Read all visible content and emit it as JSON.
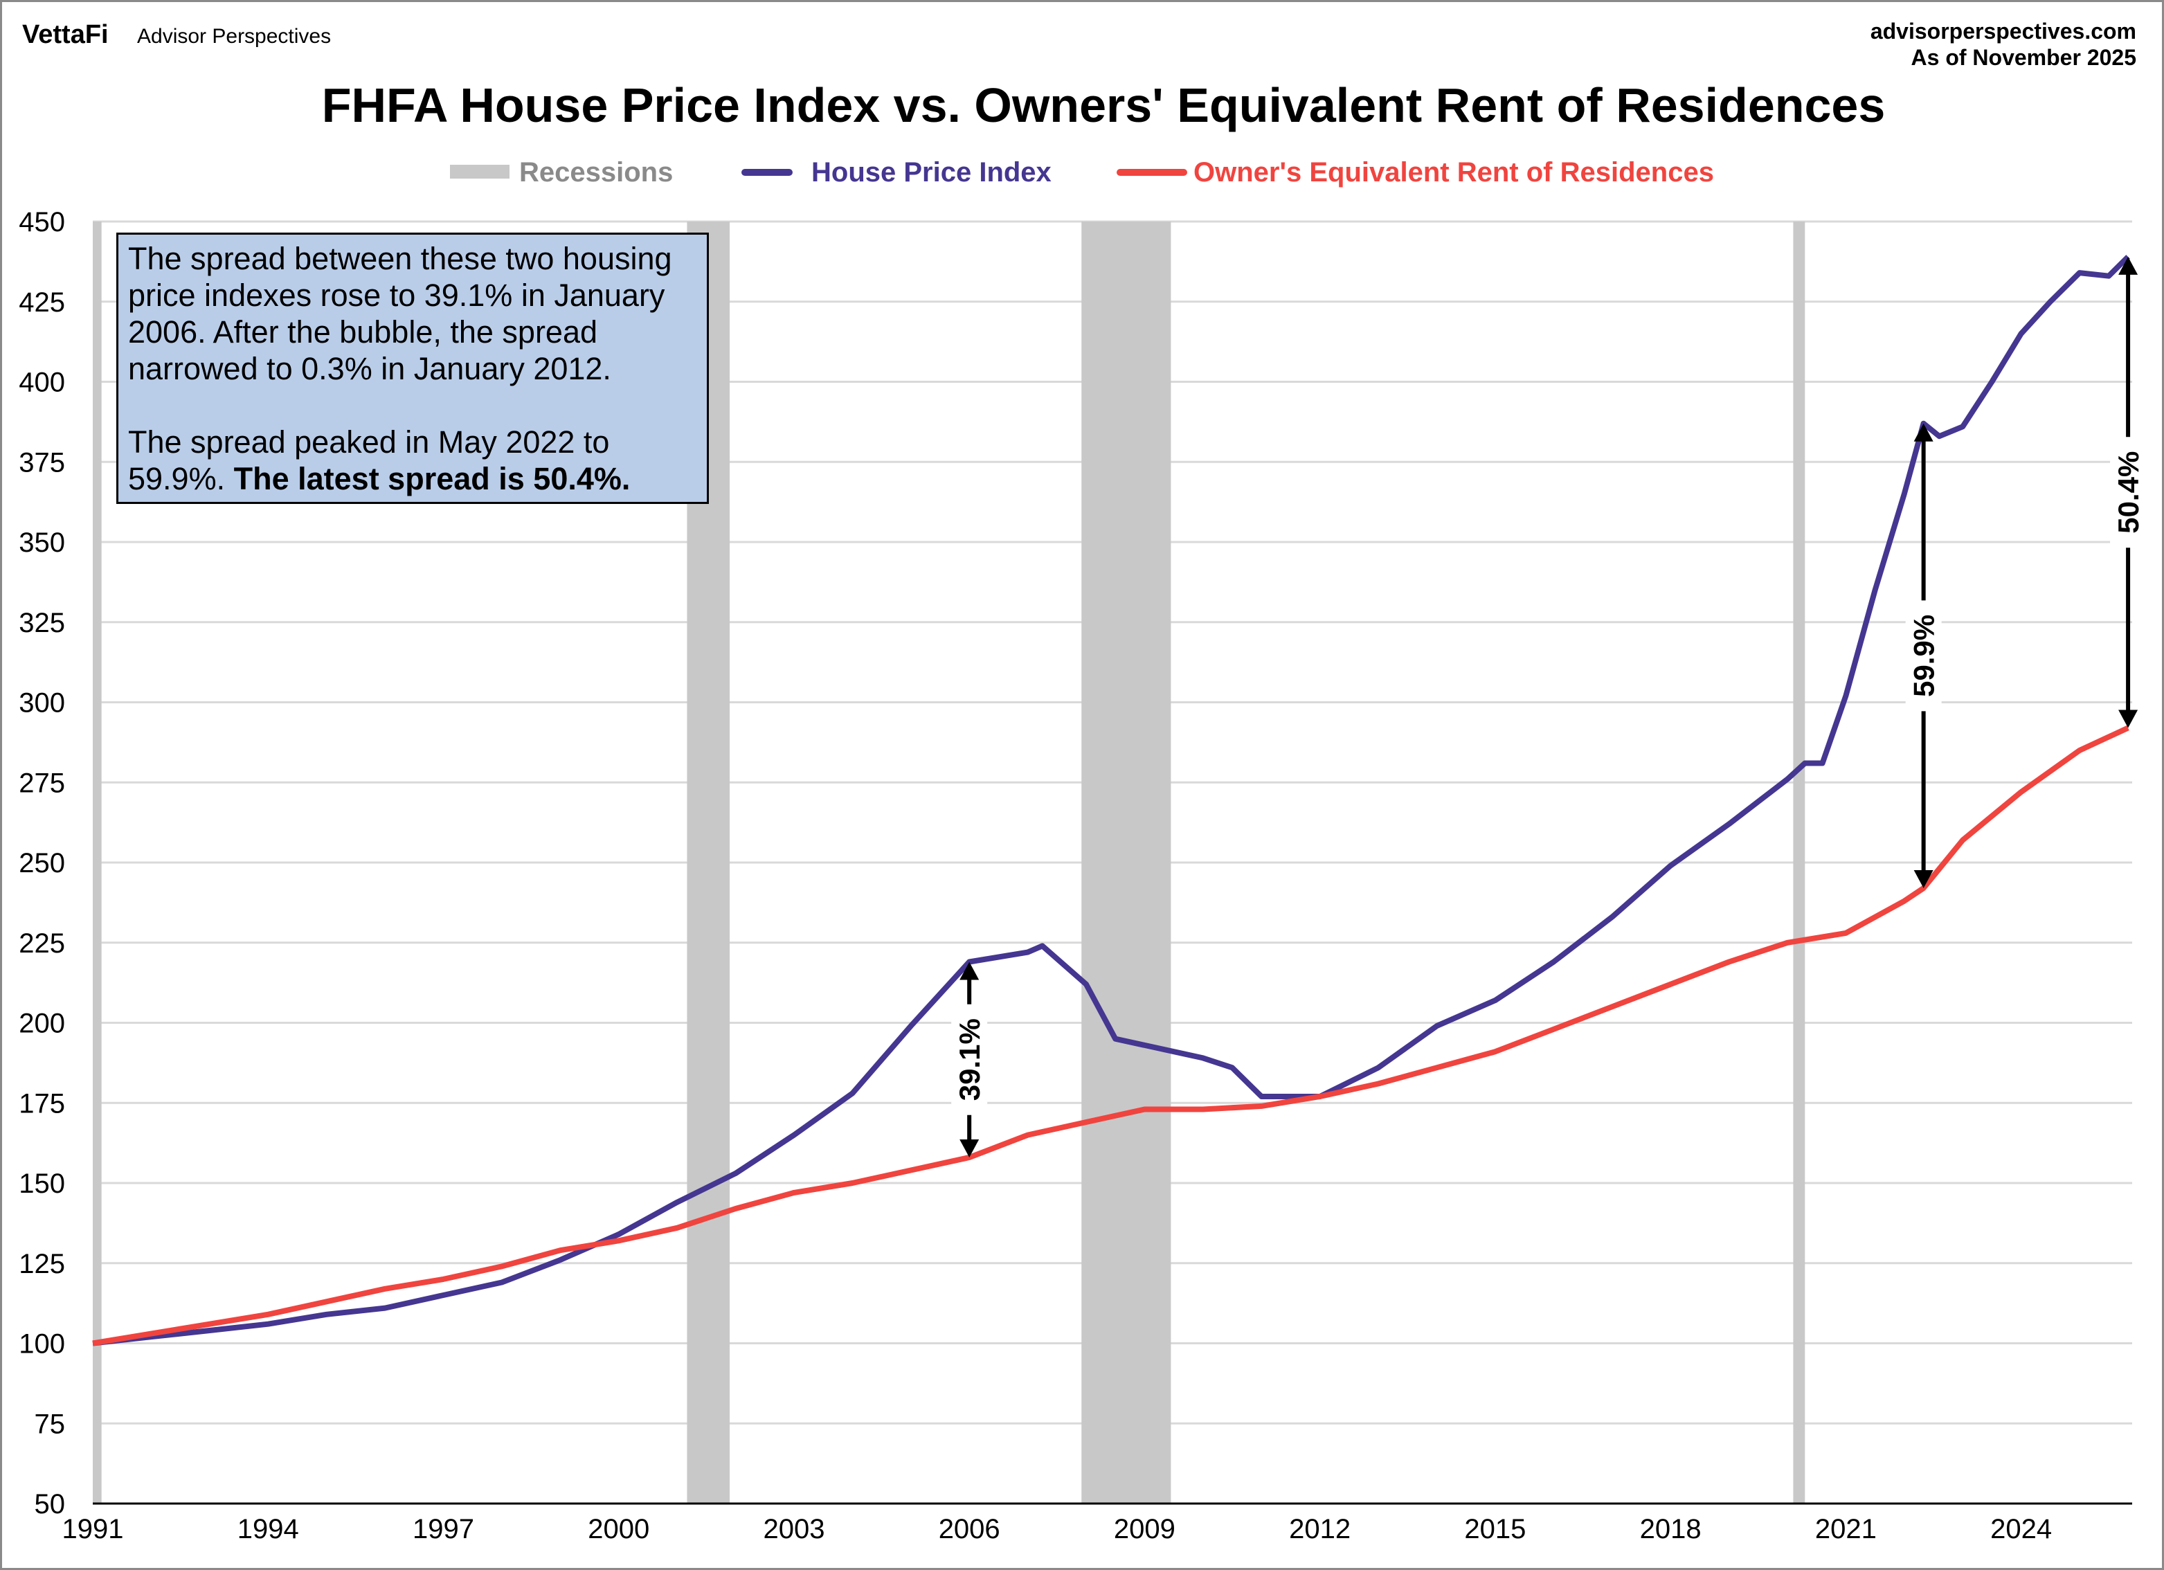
{
  "header": {
    "logo": "VettaFi",
    "brand": "Advisor Perspectives",
    "site": "advisorperspectives.com",
    "as_of": "As of November 2025"
  },
  "note": {
    "paragraph1": "The spread between these two housing price indexes rose to 39.1% in January 2006. After the bubble, the spread narrowed to 0.3% in January 2012.",
    "paragraph2_plain": "The spread peaked in May 2022 to 59.9%.",
    "paragraph2_bold": "The latest spread is 50.4%."
  },
  "chart_data": {
    "type": "line",
    "title": "FHFA House Price Index vs. Owners' Equivalent Rent of Residences",
    "xlabel": "",
    "ylabel": "",
    "xlim": [
      1991,
      2025.9
    ],
    "ylim": [
      50,
      450
    ],
    "x_ticks": [
      "1991",
      "1994",
      "1997",
      "2000",
      "2003",
      "2006",
      "2009",
      "2012",
      "2015",
      "2018",
      "2021",
      "2024"
    ],
    "y_ticks": [
      50,
      75,
      100,
      125,
      150,
      175,
      200,
      225,
      250,
      275,
      300,
      325,
      350,
      375,
      400,
      425,
      450
    ],
    "grid": "horizontal",
    "legend_position": "top",
    "legend": [
      {
        "label": "Recessions",
        "color": "#c8c8c8",
        "kind": "band"
      },
      {
        "label": "House Price Index",
        "color": "#453691",
        "kind": "line"
      },
      {
        "label": "Owner's Equivalent Rent of Residences",
        "color": "#f0443f",
        "kind": "line"
      }
    ],
    "recessions": [
      [
        1990.6,
        1991.15
      ],
      [
        2001.17,
        2001.9
      ],
      [
        2007.92,
        2009.45
      ],
      [
        2020.1,
        2020.3
      ]
    ],
    "series": [
      {
        "name": "House Price Index",
        "color": "#453691",
        "x": [
          1991,
          1992,
          1993,
          1994,
          1995,
          1996,
          1997,
          1998,
          1999,
          2000,
          2001,
          2002,
          2003,
          2004,
          2005,
          2006,
          2007,
          2007.25,
          2008,
          2008.5,
          2009,
          2010,
          2010.5,
          2011,
          2012,
          2013,
          2014,
          2015,
          2016,
          2017,
          2018,
          2019,
          2020,
          2020.3,
          2020.6,
          2021,
          2021.5,
          2022,
          2022.33,
          2022.6,
          2023,
          2023.5,
          2024,
          2024.5,
          2025,
          2025.5,
          2025.83
        ],
        "y": [
          100,
          102,
          104,
          106,
          109,
          111,
          115,
          119,
          126,
          134,
          144,
          153,
          165,
          178,
          199,
          219,
          222,
          224,
          212,
          195,
          193,
          189,
          186,
          177,
          177,
          186,
          199,
          207,
          219,
          233,
          249,
          262,
          276,
          281,
          281,
          302,
          335,
          365,
          387,
          383,
          386,
          400,
          415,
          425,
          434,
          433,
          439
        ]
      },
      {
        "name": "Owner's Equivalent Rent of Residences",
        "color": "#f0443f",
        "x": [
          1991,
          1992,
          1993,
          1994,
          1995,
          1996,
          1997,
          1998,
          1999,
          2000,
          2001,
          2002,
          2003,
          2004,
          2005,
          2006,
          2007,
          2008,
          2009,
          2010,
          2011,
          2012,
          2013,
          2014,
          2015,
          2016,
          2017,
          2018,
          2019,
          2020,
          2021,
          2022,
          2022.33,
          2023,
          2024,
          2025,
          2025.83
        ],
        "y": [
          100,
          103,
          106,
          109,
          113,
          117,
          120,
          124,
          129,
          132,
          136,
          142,
          147,
          150,
          154,
          158,
          165,
          169,
          173,
          173,
          174,
          177,
          181,
          186,
          191,
          198,
          205,
          212,
          219,
          225,
          228,
          238,
          242,
          257,
          272,
          285,
          292
        ]
      }
    ],
    "annotations": [
      {
        "label": "39.1%",
        "x": 2006,
        "from": 158,
        "to": 219
      },
      {
        "label": "59.9%",
        "x": 2022.33,
        "from": 242,
        "to": 387
      },
      {
        "label": "50.4%",
        "x": 2025.83,
        "from": 292,
        "to": 439
      }
    ]
  }
}
